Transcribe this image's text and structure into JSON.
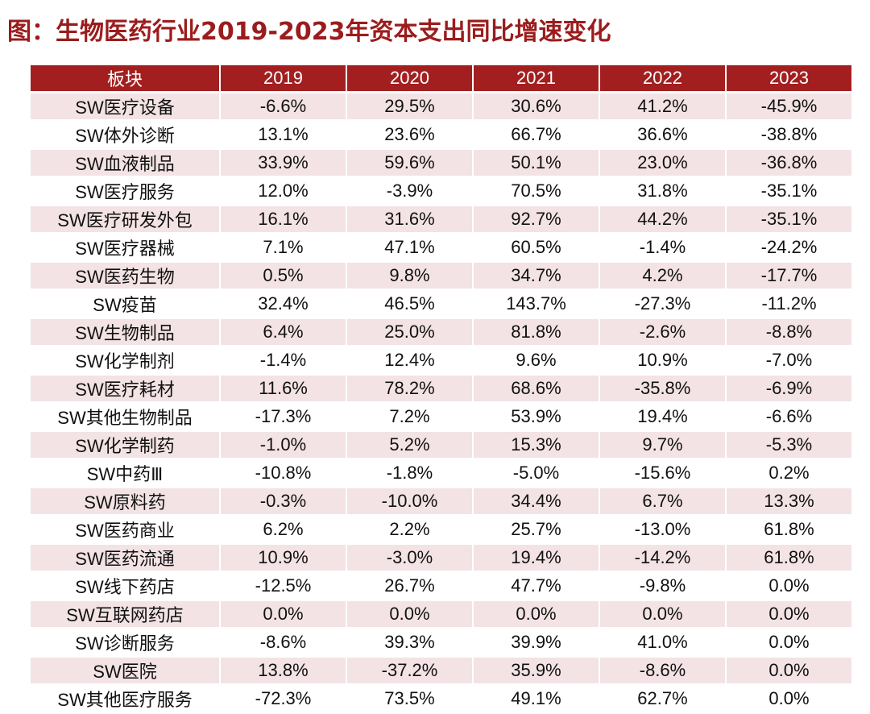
{
  "title": "图：生物医药行业2019-2023年资本支出同比增速变化",
  "table": {
    "headers": [
      "板块",
      "2019",
      "2020",
      "2021",
      "2022",
      "2023"
    ],
    "rows": [
      [
        "SW医疗设备",
        "-6.6%",
        "29.5%",
        "30.6%",
        "41.2%",
        "-45.9%"
      ],
      [
        "SW体外诊断",
        "13.1%",
        "23.6%",
        "66.7%",
        "36.6%",
        "-38.8%"
      ],
      [
        "SW血液制品",
        "33.9%",
        "59.6%",
        "50.1%",
        "23.0%",
        "-36.8%"
      ],
      [
        "SW医疗服务",
        "12.0%",
        "-3.9%",
        "70.5%",
        "31.8%",
        "-35.1%"
      ],
      [
        "SW医疗研发外包",
        "16.1%",
        "31.6%",
        "92.7%",
        "44.2%",
        "-35.1%"
      ],
      [
        "SW医疗器械",
        "7.1%",
        "47.1%",
        "60.5%",
        "-1.4%",
        "-24.2%"
      ],
      [
        "SW医药生物",
        "0.5%",
        "9.8%",
        "34.7%",
        "4.2%",
        "-17.7%"
      ],
      [
        "SW疫苗",
        "32.4%",
        "46.5%",
        "143.7%",
        "-27.3%",
        "-11.2%"
      ],
      [
        "SW生物制品",
        "6.4%",
        "25.0%",
        "81.8%",
        "-2.6%",
        "-8.8%"
      ],
      [
        "SW化学制剂",
        "-1.4%",
        "12.4%",
        "9.6%",
        "10.9%",
        "-7.0%"
      ],
      [
        "SW医疗耗材",
        "11.6%",
        "78.2%",
        "68.6%",
        "-35.8%",
        "-6.9%"
      ],
      [
        "SW其他生物制品",
        "-17.3%",
        "7.2%",
        "53.9%",
        "19.4%",
        "-6.6%"
      ],
      [
        "SW化学制药",
        "-1.0%",
        "5.2%",
        "15.3%",
        "9.7%",
        "-5.3%"
      ],
      [
        "SW中药Ⅲ",
        "-10.8%",
        "-1.8%",
        "-5.0%",
        "-15.6%",
        "0.2%"
      ],
      [
        "SW原料药",
        "-0.3%",
        "-10.0%",
        "34.4%",
        "6.7%",
        "13.3%"
      ],
      [
        "SW医药商业",
        "6.2%",
        "2.2%",
        "25.7%",
        "-13.0%",
        "61.8%"
      ],
      [
        "SW医药流通",
        "10.9%",
        "-3.0%",
        "19.4%",
        "-14.2%",
        "61.8%"
      ],
      [
        "SW线下药店",
        "-12.5%",
        "26.7%",
        "47.7%",
        "-9.8%",
        "0.0%"
      ],
      [
        "SW互联网药店",
        "0.0%",
        "0.0%",
        "0.0%",
        "0.0%",
        "0.0%"
      ],
      [
        "SW诊断服务",
        "-8.6%",
        "39.3%",
        "39.9%",
        "41.0%",
        "0.0%"
      ],
      [
        "SW医院",
        "13.8%",
        "-37.2%",
        "35.9%",
        "-8.6%",
        "0.0%"
      ],
      [
        "SW其他医疗服务",
        "-72.3%",
        "73.5%",
        "49.1%",
        "62.7%",
        "0.0%"
      ]
    ]
  },
  "colors": {
    "title": "#9b1c1c",
    "header_bg": "#a31f1f",
    "header_text": "#ffffff",
    "stripe": "#f3e3e4"
  }
}
